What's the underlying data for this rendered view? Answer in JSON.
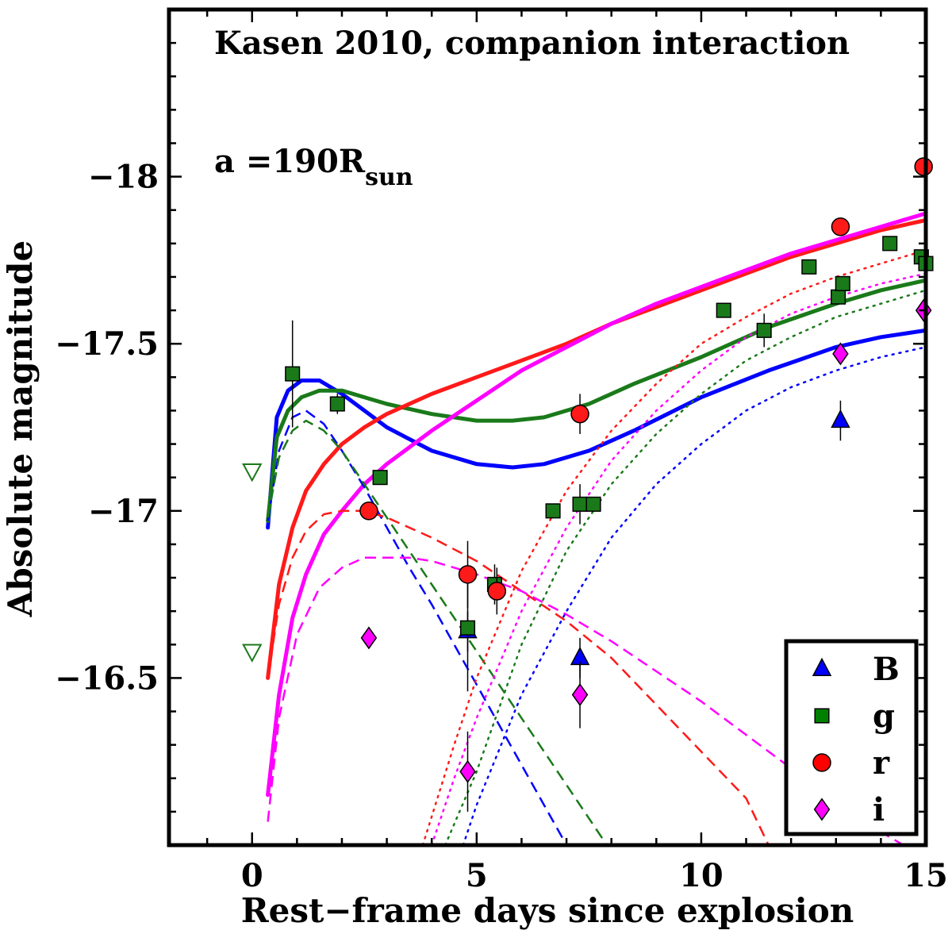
{
  "chart_data": {
    "type": "scatter",
    "xlabel": "Rest−frame days since explosion",
    "ylabel": "Absolute magnitude",
    "xlim": [
      -1.85,
      15
    ],
    "ylim": [
      -16,
      -18.5
    ],
    "y_inverted": true,
    "x_ticks": [
      0,
      5,
      10,
      15
    ],
    "x_tick_labels": [
      "0",
      "5",
      "10",
      "15"
    ],
    "y_ticks": [
      -18,
      -17.5,
      -17,
      -16.5
    ],
    "y_tick_labels": [
      "−18",
      "−17.5",
      "−17",
      "−16.5"
    ],
    "annotations": {
      "title": "Kasen 2010, companion interaction",
      "param_prefix": "a =190R",
      "param_sub": "sun"
    },
    "legend": {
      "position": "bottom-right",
      "entries": [
        {
          "label": "B",
          "marker": "triangle",
          "color": "#0000ff"
        },
        {
          "label": "g",
          "marker": "square",
          "color": "#008000"
        },
        {
          "label": "r",
          "marker": "circle",
          "color": "#ff0000"
        },
        {
          "label": "i",
          "marker": "diamond",
          "color": "#ff00ff"
        }
      ]
    },
    "colors": {
      "B": "#0000ff",
      "g": "#1a7a1a",
      "r": "#ff1a1a",
      "i": "#ff00ff"
    },
    "upper_limits": [
      {
        "x": 0.0,
        "y": -17.12,
        "color": "#1a7a1a"
      },
      {
        "x": 0.0,
        "y": -16.58,
        "color": "#1a7a1a"
      }
    ],
    "series": [
      {
        "name": "B",
        "marker": "triangle",
        "color": "#0000ff",
        "points": [
          {
            "x": 4.8,
            "y": -16.64,
            "err": 0.06
          },
          {
            "x": 7.3,
            "y": -16.56,
            "err": 0.06
          },
          {
            "x": 13.1,
            "y": -17.27,
            "err": 0.06
          }
        ]
      },
      {
        "name": "g",
        "marker": "square",
        "color": "#1a7a1a",
        "points": [
          {
            "x": 0.9,
            "y": -17.41,
            "err": 0.16
          },
          {
            "x": 1.9,
            "y": -17.32,
            "err": 0.03
          },
          {
            "x": 2.85,
            "y": -17.1,
            "err": 0.02
          },
          {
            "x": 4.8,
            "y": -16.65,
            "err": 0.19
          },
          {
            "x": 5.4,
            "y": -16.78,
            "err": 0.06
          },
          {
            "x": 6.7,
            "y": -17.0,
            "err": 0.0
          },
          {
            "x": 7.3,
            "y": -17.02,
            "err": 0.06
          },
          {
            "x": 7.6,
            "y": -17.02,
            "err": 0.0
          },
          {
            "x": 10.5,
            "y": -17.6,
            "err": 0.0
          },
          {
            "x": 11.4,
            "y": -17.54,
            "err": 0.05
          },
          {
            "x": 12.4,
            "y": -17.73,
            "err": 0.0
          },
          {
            "x": 13.05,
            "y": -17.64,
            "err": 0.0
          },
          {
            "x": 13.15,
            "y": -17.68,
            "err": 0.0
          },
          {
            "x": 14.2,
            "y": -17.8,
            "err": 0.0
          },
          {
            "x": 14.9,
            "y": -17.76,
            "err": 0.0
          },
          {
            "x": 15.0,
            "y": -17.74,
            "err": 0.0
          }
        ]
      },
      {
        "name": "r",
        "marker": "circle",
        "color": "#ff1a1a",
        "points": [
          {
            "x": 2.6,
            "y": -17.0,
            "err": 0.0
          },
          {
            "x": 4.8,
            "y": -16.81,
            "err": 0.1
          },
          {
            "x": 5.45,
            "y": -16.76,
            "err": 0.07
          },
          {
            "x": 7.3,
            "y": -17.29,
            "err": 0.06
          },
          {
            "x": 13.1,
            "y": -17.85,
            "err": 0.0
          },
          {
            "x": 14.95,
            "y": -18.03,
            "err": 0.0
          }
        ]
      },
      {
        "name": "i",
        "marker": "diamond",
        "color": "#ff00ff",
        "points": [
          {
            "x": 2.6,
            "y": -16.62,
            "err": 0.03
          },
          {
            "x": 4.8,
            "y": -16.22,
            "err": 0.12
          },
          {
            "x": 7.3,
            "y": -16.45,
            "err": 0.1
          },
          {
            "x": 13.1,
            "y": -17.47,
            "err": 0.0
          },
          {
            "x": 14.95,
            "y": -17.6,
            "err": 0.0
          }
        ]
      }
    ],
    "model_curves": [
      {
        "band": "B",
        "component": "total",
        "style": "solid",
        "x": [
          0.35,
          0.55,
          0.8,
          1.1,
          1.5,
          2.0,
          2.5,
          3.0,
          4.0,
          5.0,
          5.8,
          6.5,
          7.5,
          8.5,
          10,
          11.5,
          13,
          14,
          15
        ],
        "y": [
          -16.95,
          -17.28,
          -17.36,
          -17.39,
          -17.39,
          -17.35,
          -17.3,
          -17.25,
          -17.18,
          -17.14,
          -17.13,
          -17.14,
          -17.18,
          -17.24,
          -17.34,
          -17.42,
          -17.49,
          -17.52,
          -17.54
        ]
      },
      {
        "band": "g",
        "component": "total",
        "style": "solid",
        "x": [
          0.35,
          0.55,
          0.8,
          1.1,
          1.5,
          2.0,
          2.5,
          3.0,
          4.0,
          5.0,
          5.8,
          6.5,
          7.5,
          8.5,
          10,
          11.5,
          13,
          14,
          15
        ],
        "y": [
          -16.97,
          -17.22,
          -17.3,
          -17.34,
          -17.36,
          -17.36,
          -17.34,
          -17.32,
          -17.29,
          -17.27,
          -17.27,
          -17.28,
          -17.32,
          -17.38,
          -17.46,
          -17.55,
          -17.62,
          -17.66,
          -17.69
        ]
      },
      {
        "band": "r",
        "component": "total",
        "style": "solid",
        "x": [
          0.35,
          0.6,
          0.9,
          1.2,
          1.6,
          2.0,
          2.5,
          3.0,
          4.0,
          5.0,
          6.0,
          7.0,
          8.0,
          9.0,
          10,
          11,
          12,
          13,
          14,
          15
        ],
        "y": [
          -16.5,
          -16.78,
          -16.95,
          -17.06,
          -17.14,
          -17.2,
          -17.25,
          -17.29,
          -17.35,
          -17.4,
          -17.45,
          -17.5,
          -17.56,
          -17.61,
          -17.66,
          -17.71,
          -17.76,
          -17.8,
          -17.84,
          -17.87
        ]
      },
      {
        "band": "i",
        "component": "total",
        "style": "solid",
        "x": [
          0.35,
          0.6,
          0.9,
          1.2,
          1.6,
          2.0,
          2.5,
          3.0,
          3.5,
          4.0,
          5.0,
          6.0,
          7.0,
          8.0,
          9.0,
          10,
          11,
          12,
          13,
          14,
          15
        ],
        "y": [
          -16.15,
          -16.45,
          -16.68,
          -16.81,
          -16.93,
          -17.0,
          -17.08,
          -17.14,
          -17.19,
          -17.24,
          -17.33,
          -17.42,
          -17.49,
          -17.56,
          -17.62,
          -17.67,
          -17.72,
          -17.77,
          -17.81,
          -17.85,
          -17.89
        ]
      },
      {
        "band": "B",
        "component": "interaction",
        "style": "dashed",
        "x": [
          0.35,
          0.6,
          0.9,
          1.2,
          1.6,
          2.0,
          2.5,
          3.0,
          3.5,
          4.0,
          4.5,
          5.0,
          5.5,
          6.0,
          6.5,
          7.0,
          7.4
        ],
        "y": [
          -16.97,
          -17.18,
          -17.28,
          -17.3,
          -17.26,
          -17.18,
          -17.07,
          -16.95,
          -16.83,
          -16.72,
          -16.6,
          -16.48,
          -16.36,
          -16.24,
          -16.12,
          -16.0,
          -15.97
        ]
      },
      {
        "band": "g",
        "component": "interaction",
        "style": "dashed",
        "x": [
          0.35,
          0.6,
          0.9,
          1.2,
          1.6,
          2.0,
          2.5,
          3.0,
          3.5,
          4.0,
          4.5,
          5.0,
          5.5,
          6.0,
          6.5,
          7.0,
          7.5,
          7.9
        ],
        "y": [
          -16.98,
          -17.16,
          -17.24,
          -17.27,
          -17.24,
          -17.18,
          -17.08,
          -16.98,
          -16.88,
          -16.78,
          -16.68,
          -16.58,
          -16.48,
          -16.38,
          -16.28,
          -16.18,
          -16.08,
          -16.0
        ]
      },
      {
        "band": "r",
        "component": "interaction",
        "style": "dashed",
        "x": [
          0.35,
          0.6,
          0.9,
          1.2,
          1.6,
          2.0,
          2.5,
          3.0,
          4.0,
          5.0,
          6.0,
          7.0,
          8.0,
          9.0,
          10,
          11,
          11.5
        ],
        "y": [
          -16.5,
          -16.72,
          -16.86,
          -16.94,
          -16.99,
          -17.0,
          -17.0,
          -16.98,
          -16.92,
          -16.85,
          -16.76,
          -16.67,
          -16.56,
          -16.42,
          -16.28,
          -16.14,
          -16.0
        ]
      },
      {
        "band": "i",
        "component": "interaction",
        "style": "dashed",
        "x": [
          0.35,
          0.6,
          1.0,
          1.5,
          2.0,
          2.5,
          3.0,
          3.5,
          4.0,
          5.0,
          6.0,
          7.0,
          8.0,
          9.0,
          10,
          11,
          12,
          13,
          14,
          14.5
        ],
        "y": [
          -16.07,
          -16.38,
          -16.63,
          -16.77,
          -16.83,
          -16.86,
          -16.86,
          -16.86,
          -16.85,
          -16.81,
          -16.76,
          -16.69,
          -16.61,
          -16.52,
          -16.43,
          -16.33,
          -16.23,
          -16.13,
          -16.04,
          -16.0
        ]
      },
      {
        "band": "B",
        "component": "SN",
        "style": "dotted",
        "x": [
          4.7,
          5.0,
          6.0,
          7.0,
          8.0,
          9.0,
          10,
          11,
          12,
          13,
          14,
          15
        ],
        "y": [
          -16.0,
          -16.12,
          -16.45,
          -16.7,
          -16.92,
          -17.08,
          -17.2,
          -17.3,
          -17.37,
          -17.42,
          -17.46,
          -17.49
        ]
      },
      {
        "band": "g",
        "component": "SN",
        "style": "dotted",
        "x": [
          4.3,
          5.0,
          6.0,
          7.0,
          8.0,
          9.0,
          10,
          11,
          12,
          13,
          14,
          15
        ],
        "y": [
          -16.0,
          -16.22,
          -16.6,
          -16.88,
          -17.08,
          -17.23,
          -17.35,
          -17.45,
          -17.52,
          -17.58,
          -17.62,
          -17.66
        ]
      },
      {
        "band": "r",
        "component": "SN",
        "style": "dotted",
        "x": [
          3.8,
          4.5,
          5.0,
          6.0,
          7.0,
          8.0,
          9.0,
          10,
          11,
          12,
          13,
          14,
          15
        ],
        "y": [
          -16.0,
          -16.3,
          -16.5,
          -16.82,
          -17.06,
          -17.24,
          -17.38,
          -17.5,
          -17.58,
          -17.65,
          -17.7,
          -17.74,
          -17.78
        ]
      },
      {
        "band": "i",
        "component": "SN",
        "style": "dotted",
        "x": [
          4.0,
          4.5,
          5.0,
          6.0,
          7.0,
          8.0,
          9.0,
          10,
          11,
          12,
          13,
          14,
          15
        ],
        "y": [
          -16.0,
          -16.2,
          -16.38,
          -16.7,
          -16.95,
          -17.15,
          -17.3,
          -17.42,
          -17.52,
          -17.59,
          -17.64,
          -17.68,
          -17.71
        ]
      }
    ]
  }
}
